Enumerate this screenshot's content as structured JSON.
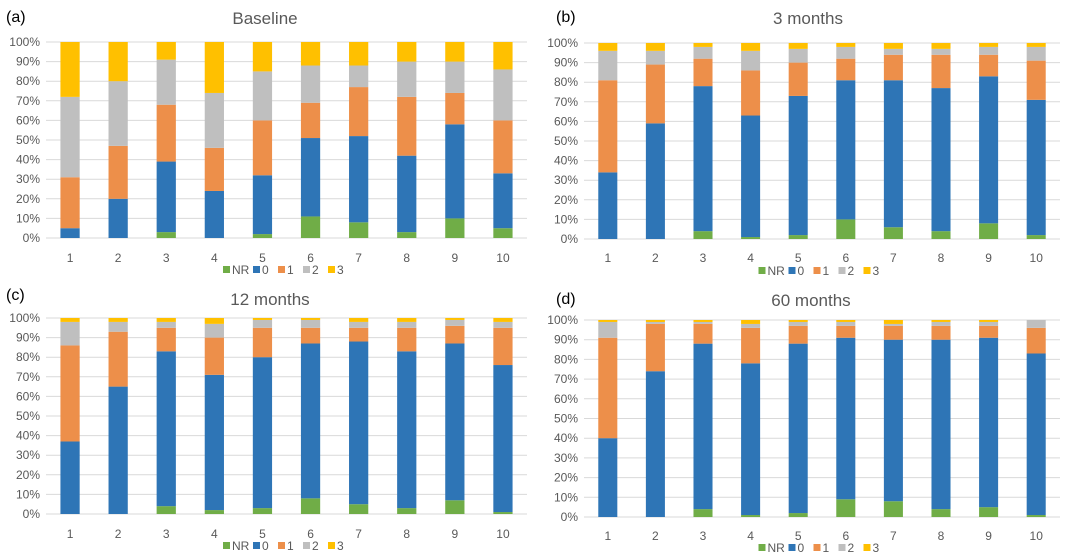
{
  "colors": {
    "NR": "#70ad47",
    "0": "#2e75b6",
    "1": "#ed8f4a",
    "2": "#bfbfbf",
    "3": "#ffc000",
    "grid": "#d9d9d9"
  },
  "legend": [
    "NR",
    "0",
    "1",
    "2",
    "3"
  ],
  "chart_data": [
    {
      "type": "bar",
      "stacked": true,
      "panel_label": "(a)",
      "title": "Baseline",
      "categories": [
        "1",
        "2",
        "3",
        "4",
        "5",
        "6",
        "7",
        "8",
        "9",
        "10"
      ],
      "y_ticks": [
        "0%",
        "10%",
        "20%",
        "30%",
        "40%",
        "50%",
        "60%",
        "70%",
        "80%",
        "90%",
        "100%"
      ],
      "ylim": [
        0,
        100
      ],
      "series": [
        {
          "name": "NR",
          "values": [
            0,
            0,
            3,
            0,
            2,
            11,
            8,
            3,
            10,
            5
          ]
        },
        {
          "name": "0",
          "values": [
            5,
            20,
            36,
            24,
            30,
            40,
            44,
            39,
            48,
            28
          ]
        },
        {
          "name": "1",
          "values": [
            26,
            27,
            29,
            22,
            28,
            18,
            25,
            30,
            16,
            27
          ]
        },
        {
          "name": "2",
          "values": [
            41,
            33,
            23,
            28,
            25,
            19,
            11,
            18,
            16,
            26
          ]
        },
        {
          "name": "3",
          "values": [
            28,
            20,
            9,
            26,
            15,
            12,
            12,
            10,
            10,
            14
          ]
        }
      ]
    },
    {
      "type": "bar",
      "stacked": true,
      "panel_label": "(b)",
      "title": "3 months",
      "categories": [
        "1",
        "2",
        "3",
        "4",
        "5",
        "6",
        "7",
        "8",
        "9",
        "10"
      ],
      "y_ticks": [
        "0%",
        "10%",
        "20%",
        "30%",
        "40%",
        "50%",
        "60%",
        "70%",
        "80%",
        "90%",
        "100%"
      ],
      "ylim": [
        0,
        100
      ],
      "series": [
        {
          "name": "NR",
          "values": [
            0,
            0,
            4,
            1,
            2,
            10,
            6,
            4,
            8,
            2
          ]
        },
        {
          "name": "0",
          "values": [
            34,
            59,
            74,
            62,
            71,
            71,
            75,
            73,
            75,
            69
          ]
        },
        {
          "name": "1",
          "values": [
            47,
            30,
            14,
            23,
            17,
            11,
            13,
            17,
            11,
            20
          ]
        },
        {
          "name": "2",
          "values": [
            15,
            7,
            6,
            10,
            7,
            6,
            3,
            3,
            4,
            7
          ]
        },
        {
          "name": "3",
          "values": [
            4,
            4,
            2,
            4,
            3,
            2,
            3,
            3,
            2,
            2
          ]
        }
      ]
    },
    {
      "type": "bar",
      "stacked": true,
      "panel_label": "(c)",
      "title": "12 months",
      "categories": [
        "1",
        "2",
        "3",
        "4",
        "5",
        "6",
        "7",
        "8",
        "9",
        "10"
      ],
      "y_ticks": [
        "0%",
        "10%",
        "20%",
        "30%",
        "40%",
        "50%",
        "60%",
        "70%",
        "80%",
        "90%",
        "100%"
      ],
      "ylim": [
        0,
        100
      ],
      "series": [
        {
          "name": "NR",
          "values": [
            0,
            0,
            4,
            2,
            3,
            8,
            5,
            3,
            7,
            1
          ]
        },
        {
          "name": "0",
          "values": [
            37,
            65,
            79,
            69,
            77,
            79,
            83,
            80,
            80,
            75
          ]
        },
        {
          "name": "1",
          "values": [
            49,
            28,
            12,
            19,
            15,
            8,
            7,
            12,
            9,
            19
          ]
        },
        {
          "name": "2",
          "values": [
            12,
            5,
            3,
            7,
            4,
            4,
            3,
            3,
            3,
            3
          ]
        },
        {
          "name": "3",
          "values": [
            2,
            2,
            2,
            3,
            1,
            1,
            2,
            2,
            1,
            2
          ]
        }
      ]
    },
    {
      "type": "bar",
      "stacked": true,
      "panel_label": "(d)",
      "title": "60 months",
      "categories": [
        "1",
        "2",
        "3",
        "4",
        "5",
        "6",
        "7",
        "8",
        "9",
        "10"
      ],
      "y_ticks": [
        "0%",
        "10%",
        "20%",
        "30%",
        "40%",
        "50%",
        "60%",
        "70%",
        "80%",
        "90%",
        "100%"
      ],
      "ylim": [
        0,
        100
      ],
      "series": [
        {
          "name": "NR",
          "values": [
            0,
            0,
            4,
            1,
            2,
            9,
            8,
            4,
            5,
            1
          ]
        },
        {
          "name": "0",
          "values": [
            40,
            74,
            84,
            77,
            86,
            82,
            82,
            86,
            86,
            82
          ]
        },
        {
          "name": "1",
          "values": [
            51,
            24,
            10,
            18,
            9,
            6,
            7,
            7,
            6,
            13
          ]
        },
        {
          "name": "2",
          "values": [
            8,
            1,
            1,
            2,
            2,
            2,
            1,
            2,
            2,
            4
          ]
        },
        {
          "name": "3",
          "values": [
            1,
            1,
            1,
            2,
            1,
            1,
            2,
            1,
            1,
            0
          ]
        }
      ]
    }
  ]
}
